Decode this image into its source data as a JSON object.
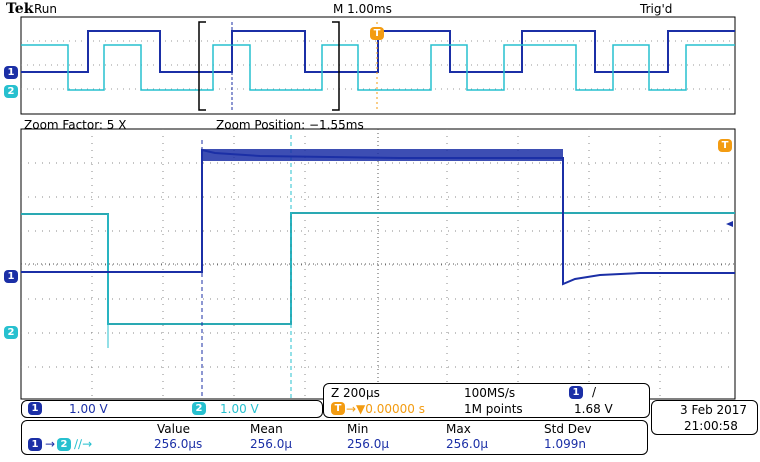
{
  "header": {
    "brand": "Tek",
    "status": "Run",
    "timebase": "M 1.00ms",
    "trigger_status": "Trig'd"
  },
  "overview": {
    "ch1_marker": "1",
    "ch2_marker": "2",
    "trigger_marker": "T"
  },
  "zoom": {
    "factor": "Zoom Factor: 5 X",
    "position": "Zoom Position: −1.55ms",
    "ch1_marker": "1",
    "ch2_marker": "2",
    "trigger_marker": "T"
  },
  "channels": {
    "ch1": {
      "num": "1",
      "scale": "1.00 V"
    },
    "ch2": {
      "num": "2",
      "scale": "1.00 V"
    }
  },
  "acquisition": {
    "zoom_time": "Z 200µs",
    "sample_rate": "100MS/s",
    "trigger_source": "1",
    "trigger_slope": "/",
    "trigger_pos_marker": "T",
    "trigger_pos": "→▼0.00000 s",
    "record_length": "1M points",
    "trigger_level": "1.68 V"
  },
  "date": {
    "date": "3 Feb 2017",
    "time": "21:00:58"
  },
  "measurement": {
    "source1": "1",
    "source2": "2",
    "icon_text": "→",
    "edge_text": "∕∕→",
    "headers": [
      "Value",
      "Mean",
      "Min",
      "Max",
      "Std Dev"
    ],
    "values": [
      "256.0µs",
      "256.0µ",
      "256.0µ",
      "256.0µ",
      "1.099n"
    ]
  },
  "colors": {
    "ch1": "#1b2fa6",
    "ch2": "#27c0cf",
    "trigger": "#f39c12"
  }
}
